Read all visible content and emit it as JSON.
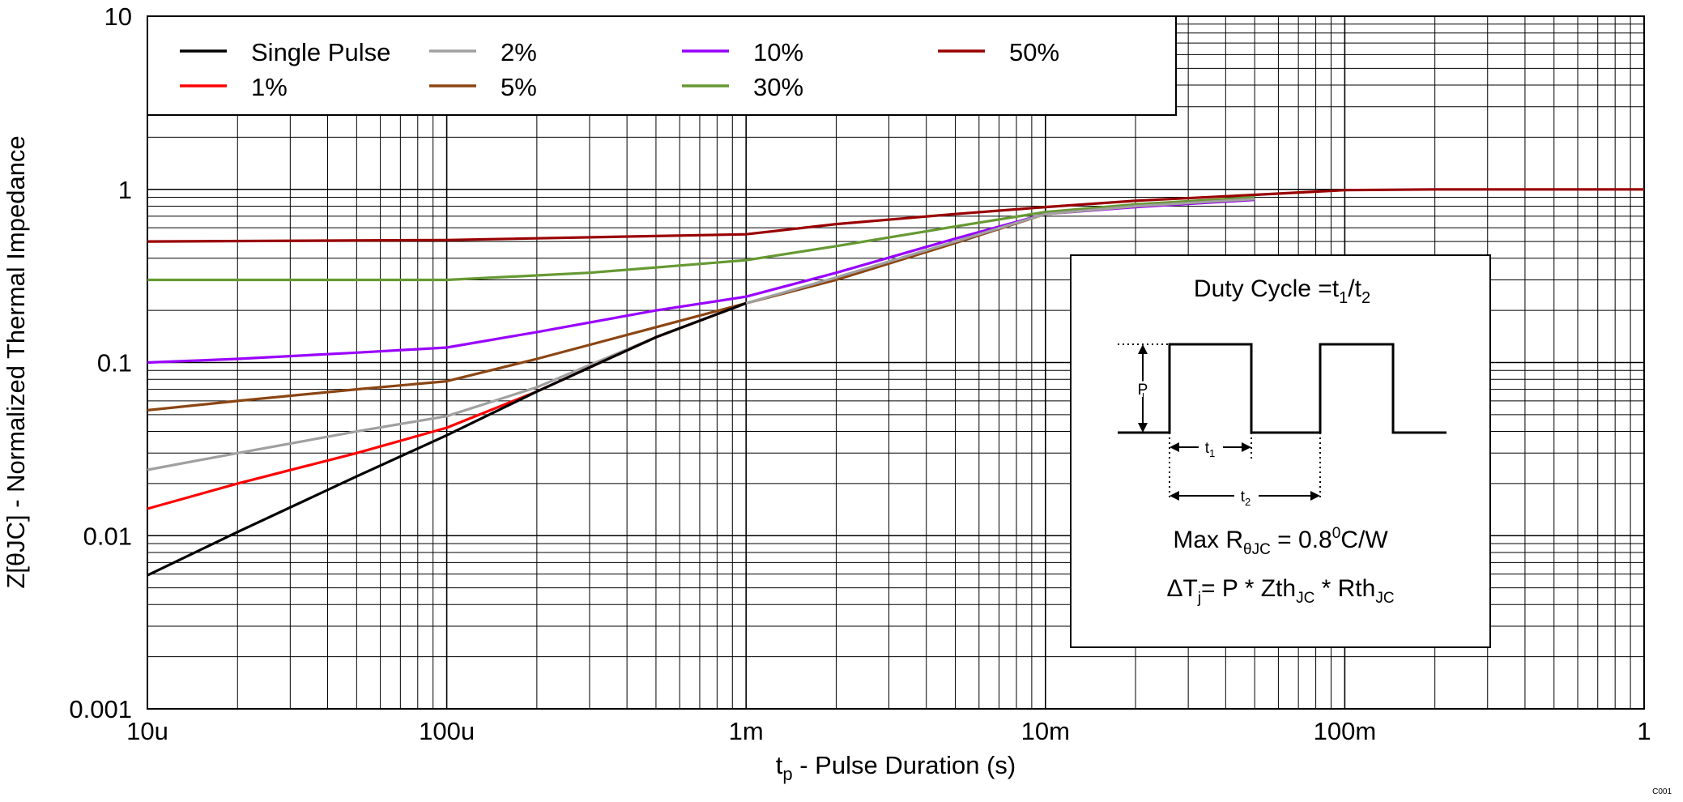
{
  "chart_data": {
    "type": "line",
    "x_scale": "log",
    "y_scale": "log",
    "xlim": [
      1e-05,
      1
    ],
    "ylim": [
      0.001,
      10
    ],
    "xlabel_main": "t",
    "xlabel_sub": "p",
    "xlabel_rest": " - Pulse Duration (s)",
    "ylabel": "Z[θJC] - Normalized Thermal Impedance",
    "x_ticks": [
      {
        "value": 1e-05,
        "label": "10u"
      },
      {
        "value": 0.0001,
        "label": "100u"
      },
      {
        "value": 0.001,
        "label": "1m"
      },
      {
        "value": 0.01,
        "label": "10m"
      },
      {
        "value": 0.1,
        "label": "100m"
      },
      {
        "value": 1,
        "label": "1"
      }
    ],
    "y_ticks": [
      {
        "value": 0.001,
        "label": "0.001"
      },
      {
        "value": 0.01,
        "label": "0.01"
      },
      {
        "value": 0.1,
        "label": "0.1"
      },
      {
        "value": 1,
        "label": "1"
      },
      {
        "value": 10,
        "label": "10"
      }
    ],
    "grid": true,
    "legend_position": "top-left",
    "series": [
      {
        "name": "Single Pulse",
        "color": "#000000",
        "x": [
          1e-05,
          2e-05,
          5e-05,
          0.0001,
          0.0002,
          0.0005,
          0.001
        ],
        "y": [
          0.0059,
          0.0105,
          0.022,
          0.038,
          0.068,
          0.14,
          0.22
        ]
      },
      {
        "name": "1%",
        "color": "#ff0000",
        "x": [
          1e-05,
          2e-05,
          5e-05,
          0.0001,
          0.0002,
          0.0005,
          0.001
        ],
        "y": [
          0.0143,
          0.02,
          0.03,
          0.042,
          0.068,
          0.14,
          0.22
        ]
      },
      {
        "name": "2%",
        "color": "#a0a0a0",
        "x": [
          1e-05,
          2e-05,
          5e-05,
          0.0001,
          0.0002,
          0.0005,
          0.001,
          0.002,
          0.005,
          0.01,
          0.02,
          0.05
        ],
        "y": [
          0.024,
          0.03,
          0.04,
          0.049,
          0.072,
          0.14,
          0.22,
          0.31,
          0.5,
          0.72,
          0.8,
          0.88
        ]
      },
      {
        "name": "5%",
        "color": "#8b4513",
        "x": [
          1e-05,
          2e-05,
          5e-05,
          0.0001,
          0.0002,
          0.0005,
          0.001,
          0.002,
          0.005,
          0.01,
          0.02,
          0.05
        ],
        "y": [
          0.053,
          0.06,
          0.07,
          0.078,
          0.105,
          0.16,
          0.22,
          0.3,
          0.49,
          0.72,
          0.8,
          0.88
        ]
      },
      {
        "name": "10%",
        "color": "#9900ff",
        "x": [
          1e-05,
          2e-05,
          5e-05,
          0.0001,
          0.0002,
          0.0005,
          0.001,
          0.002,
          0.005,
          0.01,
          0.02,
          0.05
        ],
        "y": [
          0.1,
          0.105,
          0.114,
          0.122,
          0.15,
          0.2,
          0.24,
          0.33,
          0.52,
          0.72,
          0.79,
          0.87
        ]
      },
      {
        "name": "30%",
        "color": "#669933",
        "x": [
          1e-05,
          3e-05,
          0.0001,
          0.0003,
          0.001,
          0.002,
          0.005,
          0.01,
          0.02,
          0.05
        ],
        "y": [
          0.3,
          0.3,
          0.3,
          0.33,
          0.39,
          0.47,
          0.61,
          0.74,
          0.82,
          0.9
        ]
      },
      {
        "name": "50%",
        "color": "#990000",
        "x": [
          1e-05,
          0.0001,
          0.001,
          0.002,
          0.005,
          0.01,
          0.02,
          0.05,
          0.1,
          0.2,
          0.5,
          1
        ],
        "y": [
          0.5,
          0.51,
          0.55,
          0.63,
          0.72,
          0.79,
          0.86,
          0.93,
          0.99,
          1.0,
          1.0,
          1.0
        ]
      }
    ],
    "inset": {
      "duty_cycle_prefix": "Duty Cycle =t",
      "duty_cycle_sub1": "1",
      "duty_cycle_slash": "/t",
      "duty_cycle_sub2": "2",
      "p_label": "P",
      "t1_main": "t",
      "t1_sub": "1",
      "t2_main": "t",
      "t2_sub": "2",
      "max_prefix": "Max R",
      "max_sub": "θJC",
      "max_mid": " = 0.8",
      "max_sup": "0",
      "max_suffix": "C/W",
      "dt_prefix": "ΔT",
      "dt_sub": "j",
      "dt_mid": "= P * Zth",
      "dt_sub2": "JC",
      "dt_mid2": " * Rth",
      "dt_sub3": "JC"
    },
    "figure_id": "C001"
  }
}
